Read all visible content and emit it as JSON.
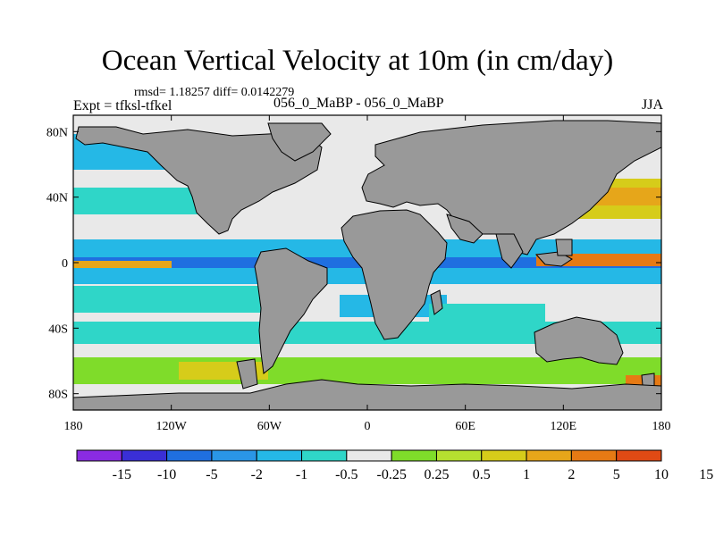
{
  "title": "Ocean Vertical Velocity at 10m (in cm/day)",
  "stats": "rmsd= 1.18257 diff= 0.0142279",
  "experiment": "Expt = tfksl-tfkel",
  "case_label": "056_0_MaBP - 056_0_MaBP",
  "season": "JJA",
  "x_ticks": [
    {
      "lon": -180,
      "label": "180"
    },
    {
      "lon": -120,
      "label": "120W"
    },
    {
      "lon": -60,
      "label": "60W"
    },
    {
      "lon": 0,
      "label": "0"
    },
    {
      "lon": 60,
      "label": "60E"
    },
    {
      "lon": 120,
      "label": "120E"
    },
    {
      "lon": 180,
      "label": "180"
    }
  ],
  "y_ticks": [
    {
      "lat": 80,
      "label": "80N"
    },
    {
      "lat": 40,
      "label": "40N"
    },
    {
      "lat": 0,
      "label": "0"
    },
    {
      "lat": -40,
      "label": "40S"
    },
    {
      "lat": -80,
      "label": "80S"
    }
  ],
  "colorbar": {
    "colors": [
      "#8a2be2",
      "#3a2fd6",
      "#1f6fe0",
      "#2a96e6",
      "#25b8e6",
      "#2fd6c8",
      "#e9e9e9",
      "#7fdc2a",
      "#b6e030",
      "#d6cc1a",
      "#e6a61a",
      "#e67a14",
      "#e04a14"
    ],
    "labels": [
      "-15",
      "-10",
      "-5",
      "-2",
      "-1",
      "-0.5",
      "-0.25",
      "0.25",
      "0.5",
      "1",
      "2",
      "5",
      "10",
      "15"
    ]
  },
  "colors": {
    "land": "#999999",
    "background_field": "#e9e9e9"
  }
}
